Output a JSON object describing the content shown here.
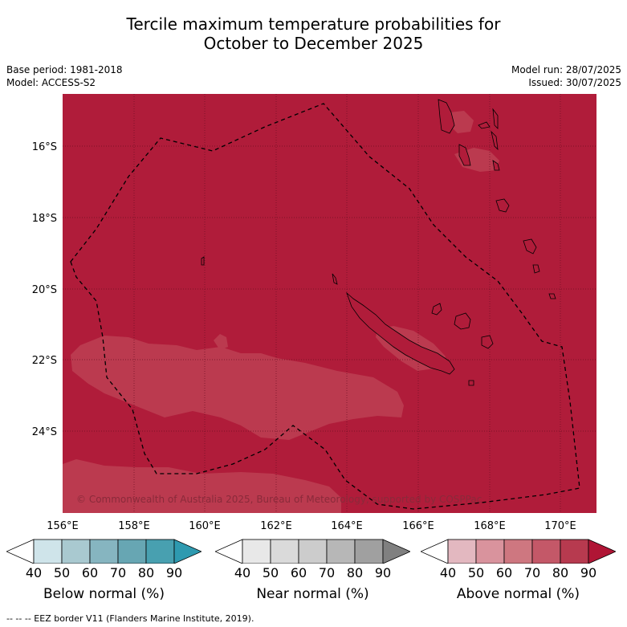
{
  "title_line1": "Tercile maximum temperature probabilities for",
  "title_line2": "October to December 2025",
  "base_period": "Base period: 1981-2018",
  "model": "Model: ACCESS-S2",
  "model_run": "Model run: 28/07/2025",
  "issued": "Issued: 30/07/2025",
  "lat_labels": [
    "16°S",
    "18°S",
    "20°S",
    "22°S",
    "24°S"
  ],
  "lon_labels": [
    "156°E",
    "158°E",
    "160°E",
    "162°E",
    "164°E",
    "166°E",
    "168°E",
    "170°E"
  ],
  "copyright": "© Commonwealth of Australia 2025, Bureau of Meteorology, supported by COSPPac",
  "legends": [
    {
      "caption": "Below normal (%)",
      "ticks": [
        "40",
        "50",
        "60",
        "70",
        "80",
        "90"
      ],
      "colors": [
        "#ffffff",
        "#cfe4ea",
        "#a9c9d0",
        "#86b5c0",
        "#67a6b3",
        "#48a0b0",
        "#2e9ab0"
      ]
    },
    {
      "caption": "Near normal (%)",
      "ticks": [
        "40",
        "50",
        "60",
        "70",
        "80",
        "90"
      ],
      "colors": [
        "#ffffff",
        "#e8e8e8",
        "#dadada",
        "#cccccc",
        "#b7b7b7",
        "#a0a0a0",
        "#808080"
      ]
    },
    {
      "caption": "Above normal (%)",
      "ticks": [
        "40",
        "50",
        "60",
        "70",
        "80",
        "90"
      ],
      "colors": [
        "#ffffff",
        "#e3b8c0",
        "#d9939d",
        "#ce7780",
        "#c45868",
        "#b73a4f",
        "#b01535"
      ]
    }
  ],
  "map_colors": {
    "dominant": "#b01c3a",
    "lighter_patch": "#bb3a4f"
  },
  "footnote": "--  --  -- EEZ border V11 (Flanders Marine Institute, 2019)."
}
